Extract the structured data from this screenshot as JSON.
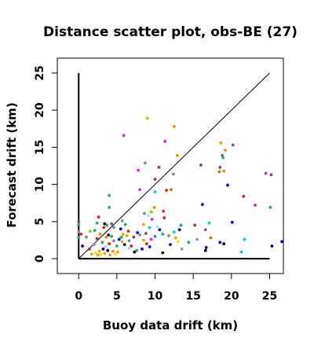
{
  "chart_data": {
    "type": "scatter",
    "title": "Distance scatter plot, obs-BE (27)",
    "xlabel": "Buoy data drift (km)",
    "ylabel": "Forecast drift (km)",
    "xlim": [
      -2.8,
      26.8
    ],
    "ylim": [
      -2.0,
      27.0
    ],
    "xticks": [
      0,
      5,
      10,
      15,
      20,
      25
    ],
    "yticks": [
      0,
      5,
      10,
      15,
      20,
      25
    ],
    "grid": false,
    "legend": "none",
    "reference_lines": [
      {
        "name": "diagonal",
        "x": [
          0,
          25
        ],
        "y": [
          0,
          25
        ],
        "color": "#000000"
      },
      {
        "name": "vertical-axis-bar",
        "x": [
          0,
          0
        ],
        "y": [
          0,
          25
        ],
        "color": "#000000"
      },
      {
        "name": "horizontal-axis-bar",
        "x": [
          0,
          25
        ],
        "y": [
          0,
          0
        ],
        "color": "#000000"
      }
    ],
    "points": [
      {
        "x": 5.9,
        "y": 16.6,
        "color": "#dd22dd"
      },
      {
        "x": 9.0,
        "y": 18.9,
        "color": "#ddaa00"
      },
      {
        "x": 12.5,
        "y": 17.8,
        "color": "#ff8800"
      },
      {
        "x": 11.3,
        "y": 15.8,
        "color": "#dd22dd"
      },
      {
        "x": 7.8,
        "y": 11.9,
        "color": "#dd22dd"
      },
      {
        "x": 8.7,
        "y": 12.9,
        "color": "#888888"
      },
      {
        "x": 10.5,
        "y": 12.3,
        "color": "#dd2222"
      },
      {
        "x": 12.9,
        "y": 13.9,
        "color": "#ff8800"
      },
      {
        "x": 12.4,
        "y": 11.4,
        "color": "#888888"
      },
      {
        "x": 10.0,
        "y": 10.7,
        "color": "#dd2222"
      },
      {
        "x": 12.1,
        "y": 9.3,
        "color": "#aa8800"
      },
      {
        "x": 11.5,
        "y": 9.2,
        "color": "#dd2222"
      },
      {
        "x": 8.0,
        "y": 9.3,
        "color": "#dd22dd"
      },
      {
        "x": 10.0,
        "y": 9.0,
        "color": "#00cccc"
      },
      {
        "x": 4.0,
        "y": 8.5,
        "color": "#22aa66"
      },
      {
        "x": 16.0,
        "y": 12.6,
        "color": "#884444"
      },
      {
        "x": 18.6,
        "y": 15.6,
        "color": "#ddaa00"
      },
      {
        "x": 19.2,
        "y": 14.6,
        "color": "#ff8800"
      },
      {
        "x": 20.2,
        "y": 15.3,
        "color": "#7755aa"
      },
      {
        "x": 18.8,
        "y": 13.9,
        "color": "#666666"
      },
      {
        "x": 18.9,
        "y": 13.6,
        "color": "#22aa66"
      },
      {
        "x": 18.5,
        "y": 12.3,
        "color": "#884444"
      },
      {
        "x": 19.0,
        "y": 11.8,
        "color": "#ff8800"
      },
      {
        "x": 18.4,
        "y": 11.7,
        "color": "#aa8800"
      },
      {
        "x": 24.5,
        "y": 11.5,
        "color": "#dd22dd"
      },
      {
        "x": 25.2,
        "y": 11.3,
        "color": "#884444"
      },
      {
        "x": 19.5,
        "y": 9.9,
        "color": "#0000cc"
      },
      {
        "x": 21.6,
        "y": 8.4,
        "color": "#dd2222"
      },
      {
        "x": 23.1,
        "y": 7.2,
        "color": "#dd22dd"
      },
      {
        "x": 16.2,
        "y": 7.3,
        "color": "#0000cc"
      },
      {
        "x": 25.1,
        "y": 6.9,
        "color": "#22aa66"
      },
      {
        "x": 20.1,
        "y": 4.9,
        "color": "#0000cc"
      },
      {
        "x": 17.1,
        "y": 4.8,
        "color": "#00cccc"
      },
      {
        "x": 15.2,
        "y": 4.5,
        "color": "#884444"
      },
      {
        "x": 16.6,
        "y": 3.9,
        "color": "#7755aa"
      },
      {
        "x": 17.3,
        "y": 2.8,
        "color": "#aa8800"
      },
      {
        "x": 15.5,
        "y": 2.6,
        "color": "#999999"
      },
      {
        "x": 21.7,
        "y": 2.6,
        "color": "#00cccc"
      },
      {
        "x": 18.5,
        "y": 2.2,
        "color": "#0000cc"
      },
      {
        "x": 19.0,
        "y": 2.0,
        "color": "#000000"
      },
      {
        "x": 14.4,
        "y": 2.2,
        "color": "#22aa66"
      },
      {
        "x": 16.7,
        "y": 1.5,
        "color": "#0000cc"
      },
      {
        "x": 16.6,
        "y": 1.1,
        "color": "#000000"
      },
      {
        "x": 21.3,
        "y": 0.9,
        "color": "#00cccc"
      },
      {
        "x": 25.3,
        "y": 1.7,
        "color": "#0000cc"
      },
      {
        "x": 26.6,
        "y": 2.3,
        "color": "#0000cc"
      },
      {
        "x": 13.4,
        "y": 4.5,
        "color": "#22aa66"
      },
      {
        "x": 13.2,
        "y": 3.9,
        "color": "#0000cc"
      },
      {
        "x": 12.5,
        "y": 3.6,
        "color": "#00cccc"
      },
      {
        "x": 11.8,
        "y": 3.1,
        "color": "#888888"
      },
      {
        "x": 12.7,
        "y": 2.8,
        "color": "#ddaa00"
      },
      {
        "x": 13.0,
        "y": 2.3,
        "color": "#ffdd00"
      },
      {
        "x": 12.0,
        "y": 1.9,
        "color": "#0000cc"
      },
      {
        "x": 13.5,
        "y": 1.3,
        "color": "#999999"
      },
      {
        "x": 11.0,
        "y": 0.8,
        "color": "#000000"
      },
      {
        "x": 11.2,
        "y": 5.5,
        "color": "#dd2222"
      },
      {
        "x": 11.1,
        "y": 6.4,
        "color": "#dd2222"
      },
      {
        "x": 9.9,
        "y": 6.9,
        "color": "#ff8800"
      },
      {
        "x": 9.5,
        "y": 6.3,
        "color": "#66dd00"
      },
      {
        "x": 9.1,
        "y": 5.8,
        "color": "#99ddff"
      },
      {
        "x": 9.6,
        "y": 5.3,
        "color": "#dd22dd"
      },
      {
        "x": 8.6,
        "y": 6.1,
        "color": "#888888"
      },
      {
        "x": 8.5,
        "y": 4.6,
        "color": "#ddaa00"
      },
      {
        "x": 9.3,
        "y": 4.2,
        "color": "#00cccc"
      },
      {
        "x": 10.3,
        "y": 4.3,
        "color": "#99ddff"
      },
      {
        "x": 10.6,
        "y": 3.9,
        "color": "#0000cc"
      },
      {
        "x": 11.0,
        "y": 3.3,
        "color": "#22aa66"
      },
      {
        "x": 10.0,
        "y": 3.0,
        "color": "#22aa66"
      },
      {
        "x": 9.5,
        "y": 2.6,
        "color": "#dd22dd"
      },
      {
        "x": 8.8,
        "y": 3.4,
        "color": "#666666"
      },
      {
        "x": 8.0,
        "y": 3.2,
        "color": "#888888"
      },
      {
        "x": 7.7,
        "y": 3.5,
        "color": "#0000cc"
      },
      {
        "x": 7.2,
        "y": 2.9,
        "color": "#884444"
      },
      {
        "x": 8.5,
        "y": 2.5,
        "color": "#ddaa00"
      },
      {
        "x": 8.9,
        "y": 2.0,
        "color": "#dd2222"
      },
      {
        "x": 9.3,
        "y": 1.6,
        "color": "#0000cc"
      },
      {
        "x": 8.3,
        "y": 1.3,
        "color": "#0000cc"
      },
      {
        "x": 7.6,
        "y": 1.1,
        "color": "#22aa66"
      },
      {
        "x": 7.3,
        "y": 0.9,
        "color": "#000000"
      },
      {
        "x": 6.6,
        "y": 1.4,
        "color": "#99ddff"
      },
      {
        "x": 6.0,
        "y": 1.9,
        "color": "#000000"
      },
      {
        "x": 5.7,
        "y": 2.3,
        "color": "#ddaa00"
      },
      {
        "x": 5.6,
        "y": 2.9,
        "color": "#22aa66"
      },
      {
        "x": 5.8,
        "y": 3.3,
        "color": "#ddaa00"
      },
      {
        "x": 5.5,
        "y": 4.0,
        "color": "#0000cc"
      },
      {
        "x": 5.7,
        "y": 5.1,
        "color": "#888888"
      },
      {
        "x": 6.1,
        "y": 4.6,
        "color": "#22aa66"
      },
      {
        "x": 6.5,
        "y": 3.7,
        "color": "#dd2222"
      },
      {
        "x": 6.6,
        "y": 2.4,
        "color": "#888888"
      },
      {
        "x": 6.9,
        "y": 1.7,
        "color": "#dd2222"
      },
      {
        "x": 4.6,
        "y": 4.2,
        "color": "#888888"
      },
      {
        "x": 4.3,
        "y": 4.7,
        "color": "#666666"
      },
      {
        "x": 4.0,
        "y": 6.9,
        "color": "#22aa66"
      },
      {
        "x": 3.7,
        "y": 4.5,
        "color": "#22aa66"
      },
      {
        "x": 3.4,
        "y": 4.7,
        "color": "#000000"
      },
      {
        "x": 3.3,
        "y": 4.2,
        "color": "#dd2222"
      },
      {
        "x": 2.6,
        "y": 5.6,
        "color": "#dd2222"
      },
      {
        "x": 2.4,
        "y": 4.8,
        "color": "#22aa66"
      },
      {
        "x": 2.1,
        "y": 3.8,
        "color": "#22aa66"
      },
      {
        "x": 1.5,
        "y": 3.7,
        "color": "#66dd00"
      },
      {
        "x": 1.0,
        "y": 2.9,
        "color": "#888888"
      },
      {
        "x": 0.3,
        "y": 3.3,
        "color": "#dd2222"
      },
      {
        "x": 0.0,
        "y": 3.6,
        "color": "#888888"
      },
      {
        "x": 0.0,
        "y": 4.6,
        "color": "#22aa66"
      },
      {
        "x": 0.0,
        "y": 5.0,
        "color": "#884444"
      },
      {
        "x": 0.0,
        "y": 2.8,
        "color": "#22aa66"
      },
      {
        "x": 0.5,
        "y": 1.7,
        "color": "#0000cc"
      },
      {
        "x": 1.4,
        "y": 1.3,
        "color": "#dd2222"
      },
      {
        "x": 2.0,
        "y": 1.9,
        "color": "#888888"
      },
      {
        "x": 2.4,
        "y": 2.7,
        "color": "#dd2222"
      },
      {
        "x": 2.8,
        "y": 3.3,
        "color": "#ff8800"
      },
      {
        "x": 3.1,
        "y": 2.2,
        "color": "#22aa66"
      },
      {
        "x": 3.6,
        "y": 2.9,
        "color": "#ff8800"
      },
      {
        "x": 3.9,
        "y": 3.2,
        "color": "#000000"
      },
      {
        "x": 4.3,
        "y": 3.0,
        "color": "#22aa66"
      },
      {
        "x": 4.6,
        "y": 2.4,
        "color": "#888888"
      },
      {
        "x": 4.0,
        "y": 2.0,
        "color": "#dd2222"
      },
      {
        "x": 3.5,
        "y": 1.6,
        "color": "#99ddff"
      },
      {
        "x": 3.2,
        "y": 1.3,
        "color": "#0000cc"
      },
      {
        "x": 3.8,
        "y": 1.1,
        "color": "#000000"
      },
      {
        "x": 4.5,
        "y": 1.0,
        "color": "#ff8800"
      },
      {
        "x": 2.7,
        "y": 1.0,
        "color": "#ddaa00"
      },
      {
        "x": 2.2,
        "y": 0.8,
        "color": "#ffdd00"
      },
      {
        "x": 2.5,
        "y": 0.5,
        "color": "#ddaa00"
      },
      {
        "x": 2.9,
        "y": 0.6,
        "color": "#ffdd00"
      },
      {
        "x": 3.4,
        "y": 0.7,
        "color": "#ddaa00"
      },
      {
        "x": 1.7,
        "y": 0.6,
        "color": "#ddaa00"
      },
      {
        "x": 4.1,
        "y": 0.5,
        "color": "#ddaa00"
      },
      {
        "x": 4.8,
        "y": 0.6,
        "color": "#ffdd00"
      },
      {
        "x": 5.1,
        "y": 0.9,
        "color": "#ddaa00"
      },
      {
        "x": 5.0,
        "y": 1.7,
        "color": "#22aa66"
      },
      {
        "x": 5.3,
        "y": 2.6,
        "color": "#0000cc"
      },
      {
        "x": 6.3,
        "y": 3.1,
        "color": "#ddaa00"
      }
    ]
  }
}
